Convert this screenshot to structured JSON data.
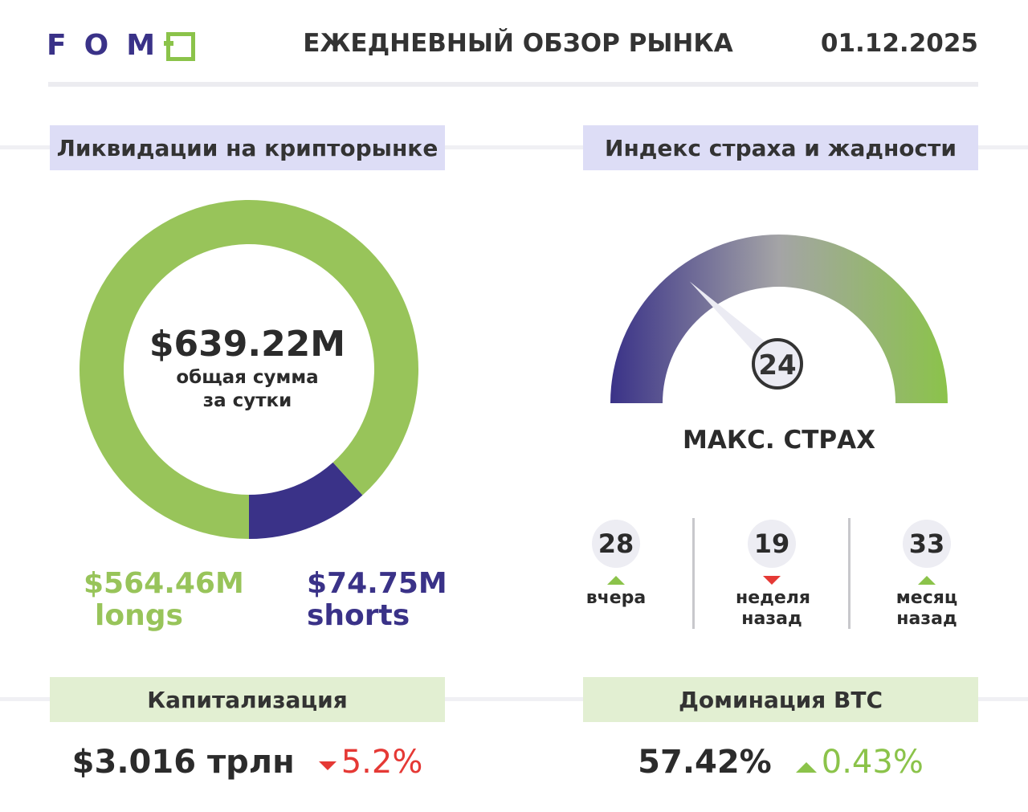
{
  "header": {
    "logo": "FOMO",
    "title": "ЕЖЕДНЕВНЫЙ ОБЗОР РЫНКА",
    "date": "01.12.2025"
  },
  "liquidations": {
    "heading": "Ликвидации на крипторынке",
    "total": "$639.22M",
    "total_caption_1": "общая сумма",
    "total_caption_2": "за сутки",
    "longs_value": "$564.46M",
    "longs_label": "longs",
    "shorts_value": "$74.75M",
    "shorts_label": "shorts"
  },
  "fear_greed": {
    "heading": "Индекс страха и жадности",
    "value": "24",
    "label": "МАКС. СТРАХ",
    "history": [
      {
        "value": "28",
        "trend": "up",
        "label_1": "вчера",
        "label_2": ""
      },
      {
        "value": "19",
        "trend": "down",
        "label_1": "неделя",
        "label_2": "назад"
      },
      {
        "value": "33",
        "trend": "up",
        "label_1": "месяц",
        "label_2": "назад"
      }
    ]
  },
  "capitalization": {
    "heading": "Капитализация",
    "value": "$3.016 трлн",
    "change": "5.2%",
    "trend": "down"
  },
  "btc_dominance": {
    "heading": "Доминация BTC",
    "value": "57.42%",
    "change": "0.43%",
    "trend": "up"
  },
  "colors": {
    "green": "#8bc34a",
    "purple": "#3a3288",
    "red": "#e53935"
  },
  "chart_data": [
    {
      "type": "pie",
      "variant": "donut",
      "categories": [
        "longs",
        "shorts"
      ],
      "values": [
        564.46,
        74.75
      ],
      "unit": "$M",
      "colors": [
        "#98c45a",
        "#3a3288"
      ]
    },
    {
      "type": "gauge",
      "min": 0,
      "max": 100,
      "value": 24,
      "label": "МАКС. СТРАХ"
    }
  ]
}
